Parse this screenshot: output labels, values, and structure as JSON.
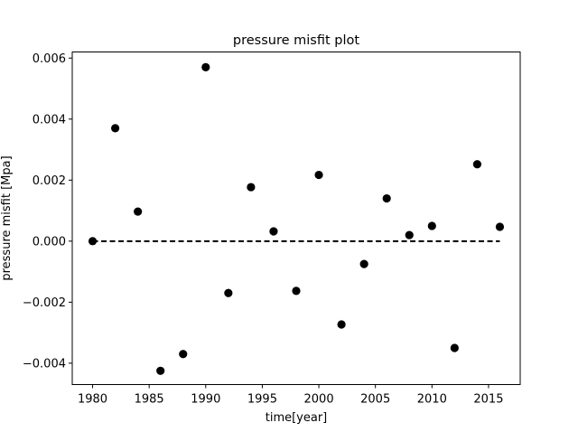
{
  "chart_data": {
    "type": "scatter",
    "title": "pressure misfit plot",
    "xlabel": "time[year]",
    "ylabel": "pressure misfit [Mpa]",
    "xlim": [
      1978.2,
      2017.8
    ],
    "ylim": [
      -0.0047,
      0.0062
    ],
    "xticks": [
      1980,
      1985,
      1990,
      1995,
      2000,
      2005,
      2010,
      2015
    ],
    "xtick_labels": [
      "1980",
      "1985",
      "1990",
      "1995",
      "2000",
      "2005",
      "2010",
      "2015"
    ],
    "yticks": [
      -0.004,
      -0.002,
      0.0,
      0.002,
      0.004,
      0.006
    ],
    "ytick_labels": [
      "−0.004",
      "−0.002",
      "0.000",
      "0.002",
      "0.004",
      "0.006"
    ],
    "grid": false,
    "series": [
      {
        "marker": "circle",
        "color": "#000000",
        "x": [
          1980,
          1982,
          1984,
          1986,
          1988,
          1990,
          1992,
          1994,
          1996,
          1998,
          2000,
          2002,
          2004,
          2006,
          2008,
          2010,
          2012,
          2014,
          2016
        ],
        "y": [
          0.0,
          0.0037,
          0.00097,
          -0.00425,
          -0.0037,
          0.0057,
          -0.0017,
          0.00177,
          0.00032,
          -0.00163,
          0.00217,
          -0.00273,
          -0.00075,
          0.0014,
          0.0002,
          0.0005,
          -0.0035,
          0.00252,
          0.00047
        ]
      }
    ],
    "reference_line": {
      "style": "dashed",
      "color": "#000000",
      "x": [
        1980,
        2016
      ],
      "y": [
        0.0,
        0.0
      ]
    }
  }
}
